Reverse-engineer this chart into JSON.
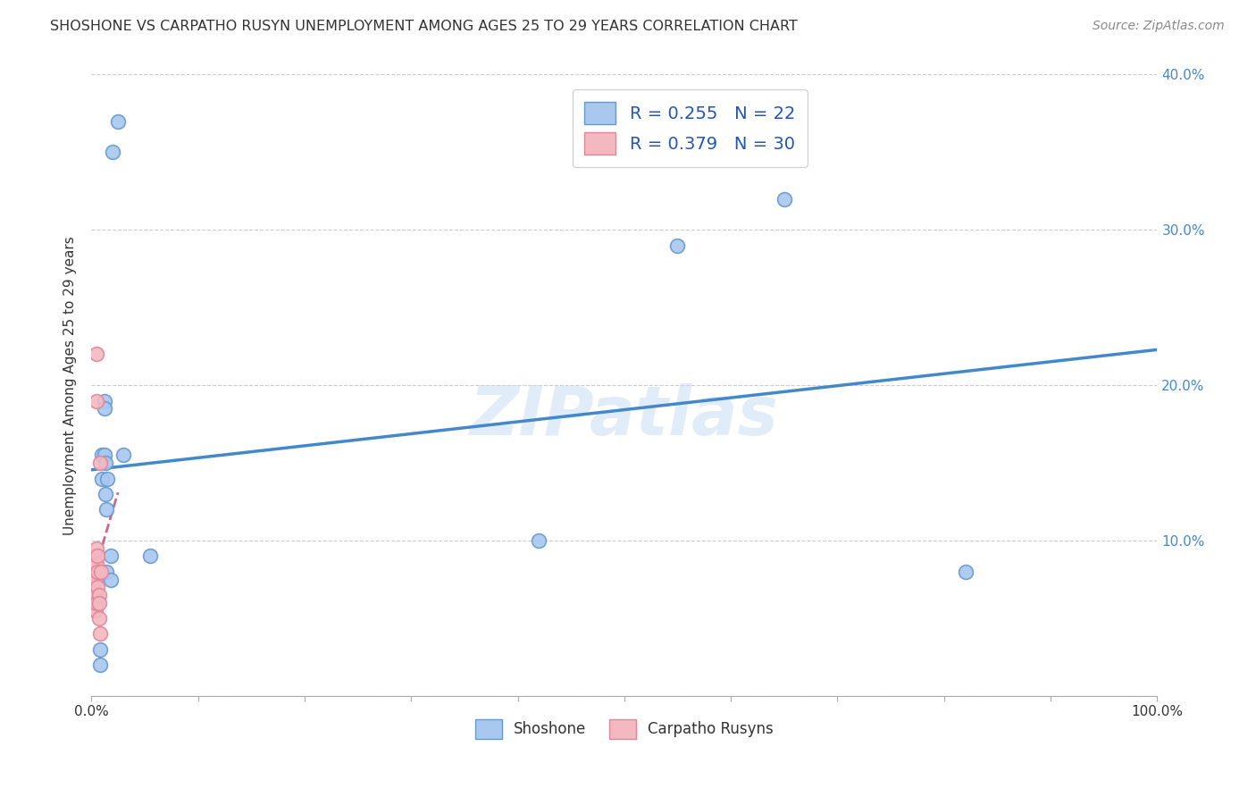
{
  "title": "SHOSHONE VS CARPATHO RUSYN UNEMPLOYMENT AMONG AGES 25 TO 29 YEARS CORRELATION CHART",
  "source": "Source: ZipAtlas.com",
  "xlabel": "",
  "ylabel": "Unemployment Among Ages 25 to 29 years",
  "xlim": [
    0.0,
    1.0
  ],
  "ylim": [
    0.0,
    0.4
  ],
  "xticks": [
    0.0,
    0.1,
    0.2,
    0.3,
    0.4,
    0.5,
    0.6,
    0.7,
    0.8,
    0.9,
    1.0
  ],
  "xtick_labels": [
    "0.0%",
    "",
    "",
    "",
    "",
    "",
    "",
    "",
    "",
    "",
    "100.0%"
  ],
  "yticks": [
    0.0,
    0.1,
    0.2,
    0.3,
    0.4
  ],
  "ytick_labels_right": [
    "",
    "10.0%",
    "20.0%",
    "30.0%",
    "40.0%"
  ],
  "shoshone_color": "#a8c8f0",
  "carpatho_color": "#f4b8c1",
  "shoshone_edge": "#6699cc",
  "carpatho_edge": "#dd8899",
  "trendline_shoshone": "#4488cc",
  "trendline_carpatho": "#cc6688",
  "shoshone_x": [
    0.008,
    0.008,
    0.01,
    0.01,
    0.012,
    0.012,
    0.012,
    0.013,
    0.013,
    0.014,
    0.014,
    0.015,
    0.018,
    0.018,
    0.02,
    0.025,
    0.03,
    0.055,
    0.42,
    0.55,
    0.65,
    0.82
  ],
  "shoshone_y": [
    0.03,
    0.02,
    0.155,
    0.14,
    0.19,
    0.185,
    0.155,
    0.15,
    0.13,
    0.12,
    0.08,
    0.14,
    0.09,
    0.075,
    0.35,
    0.37,
    0.155,
    0.09,
    0.1,
    0.29,
    0.32,
    0.08
  ],
  "carpatho_x": [
    0.001,
    0.001,
    0.001,
    0.002,
    0.002,
    0.002,
    0.002,
    0.003,
    0.003,
    0.003,
    0.003,
    0.003,
    0.004,
    0.004,
    0.004,
    0.004,
    0.005,
    0.005,
    0.005,
    0.005,
    0.005,
    0.006,
    0.006,
    0.006,
    0.007,
    0.007,
    0.007,
    0.008,
    0.008,
    0.009
  ],
  "carpatho_y": [
    0.07,
    0.065,
    0.06,
    0.09,
    0.08,
    0.07,
    0.065,
    0.09,
    0.085,
    0.075,
    0.065,
    0.055,
    0.085,
    0.075,
    0.065,
    0.055,
    0.22,
    0.19,
    0.095,
    0.085,
    0.06,
    0.09,
    0.08,
    0.07,
    0.065,
    0.06,
    0.05,
    0.15,
    0.04,
    0.08
  ],
  "watermark": "ZIPatlas",
  "background_color": "#ffffff",
  "grid_color": "#cccccc",
  "title_color": "#333333",
  "source_color": "#888888",
  "tick_color_blue": "#4488cc",
  "legend_text_color": "#2255bb"
}
